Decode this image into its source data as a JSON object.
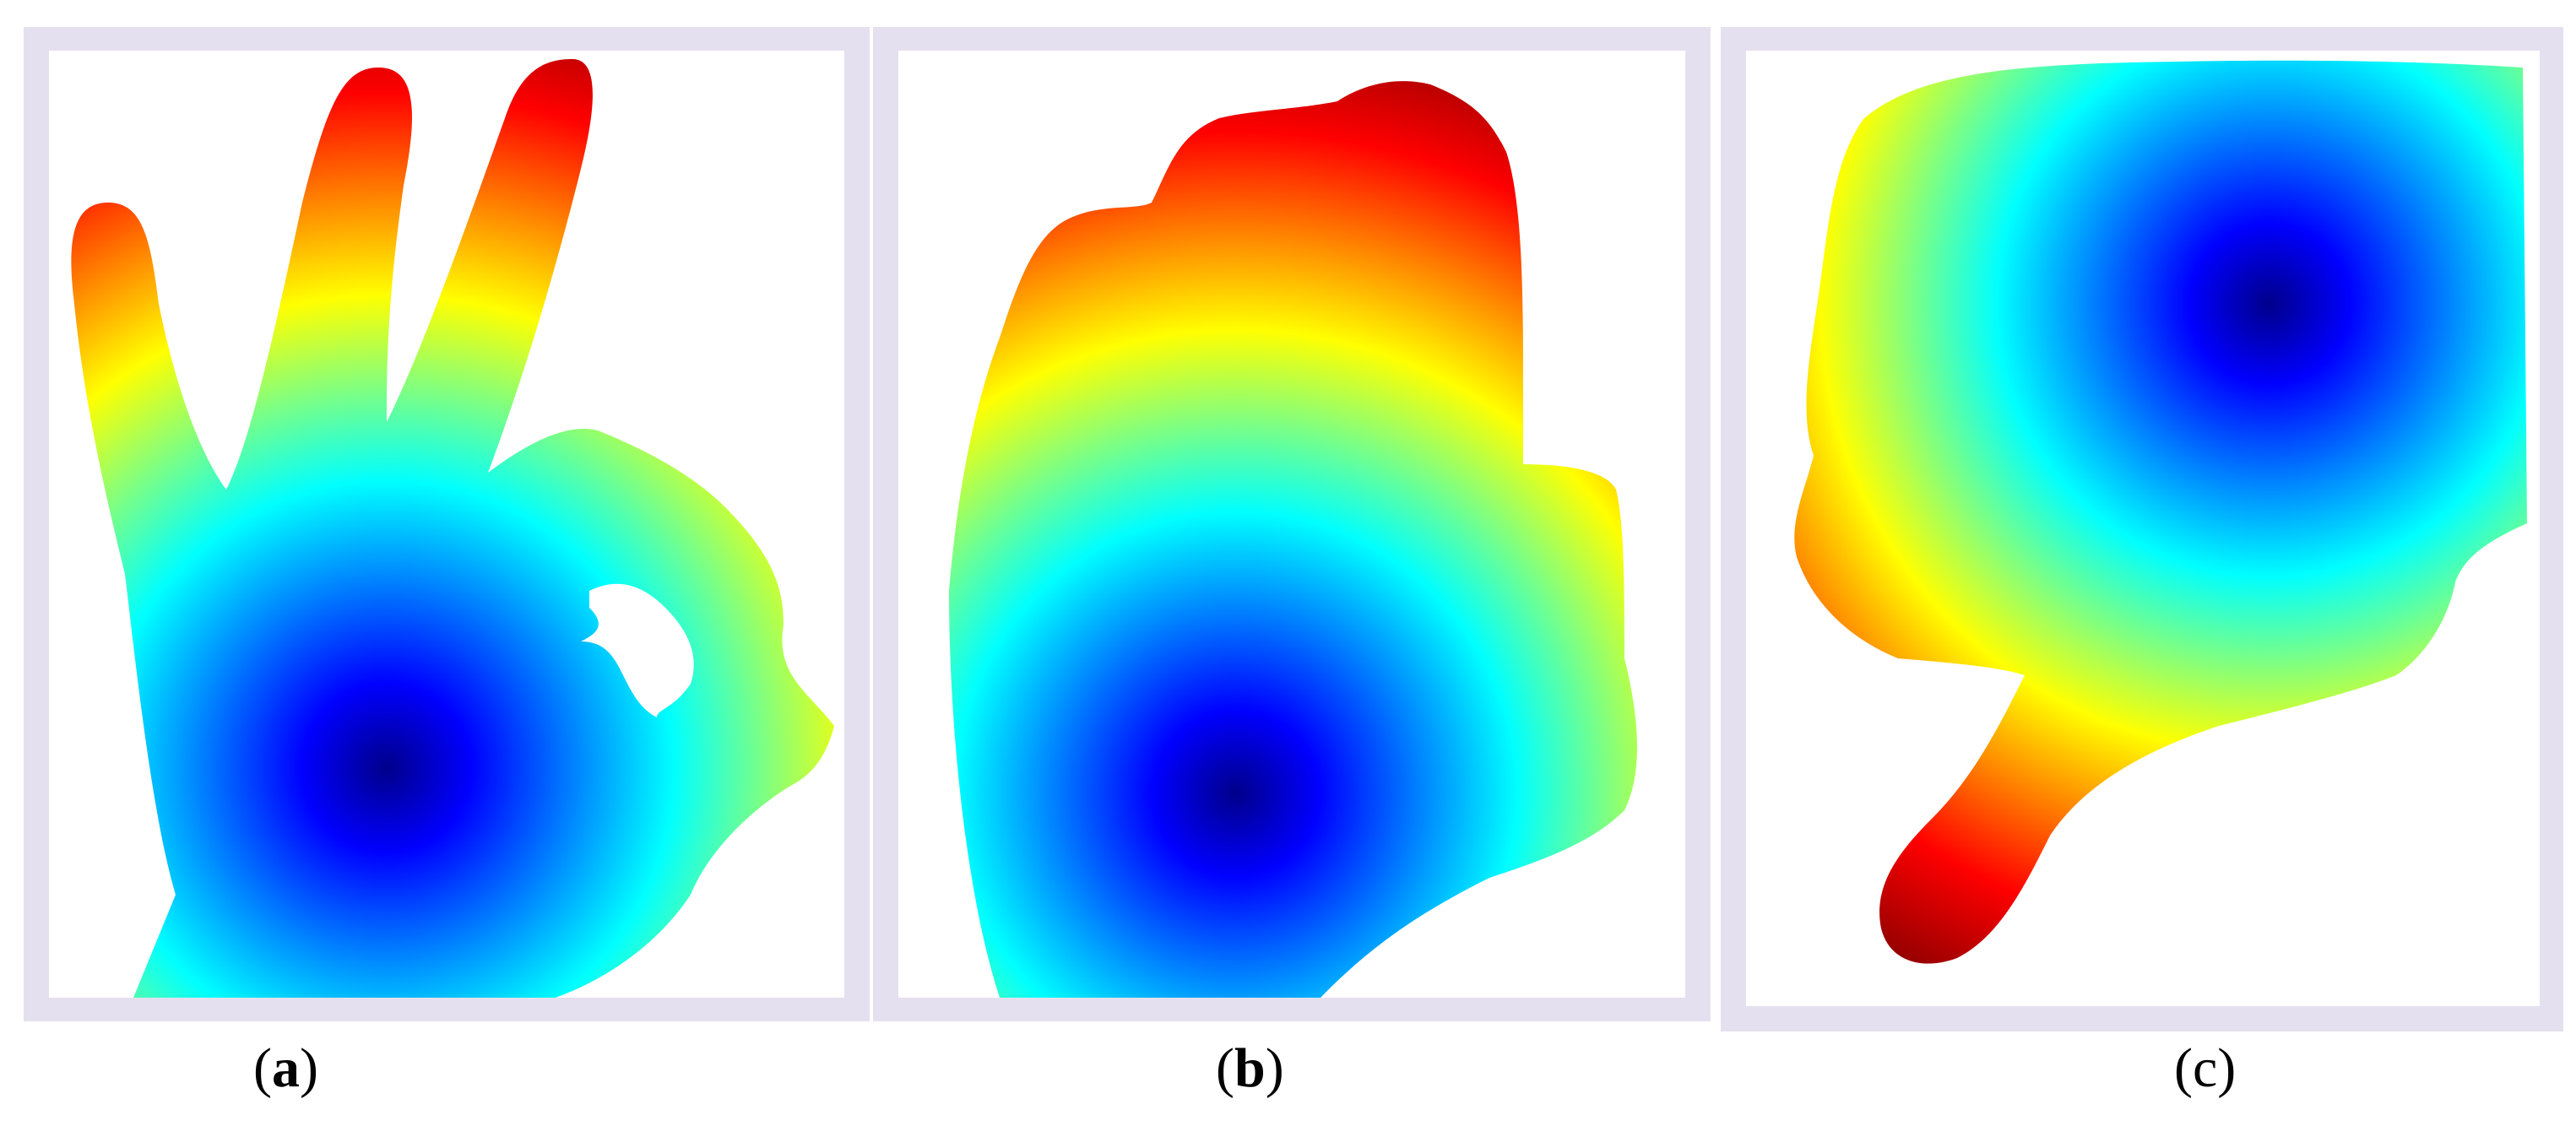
{
  "panels": [
    {
      "id": "a",
      "gesture_icon": "ok-sign-hand-depth-map",
      "caption_open": "(",
      "caption_letter": "a",
      "caption_close": ")"
    },
    {
      "id": "b",
      "gesture_icon": "fist-hand-depth-map",
      "caption_open": "(",
      "caption_letter": "b",
      "caption_close": ")"
    },
    {
      "id": "c",
      "gesture_icon": "thumb-down-hand-depth-map",
      "caption_open": "(",
      "caption_letter": "c",
      "caption_close": ")"
    }
  ],
  "colormap": {
    "name": "jet",
    "stops": [
      "#00008b",
      "#0000ff",
      "#0080ff",
      "#00ffff",
      "#80ff80",
      "#ffff00",
      "#ff8000",
      "#ff0000",
      "#8b0000"
    ]
  },
  "frame_color": "#e5e0ef"
}
